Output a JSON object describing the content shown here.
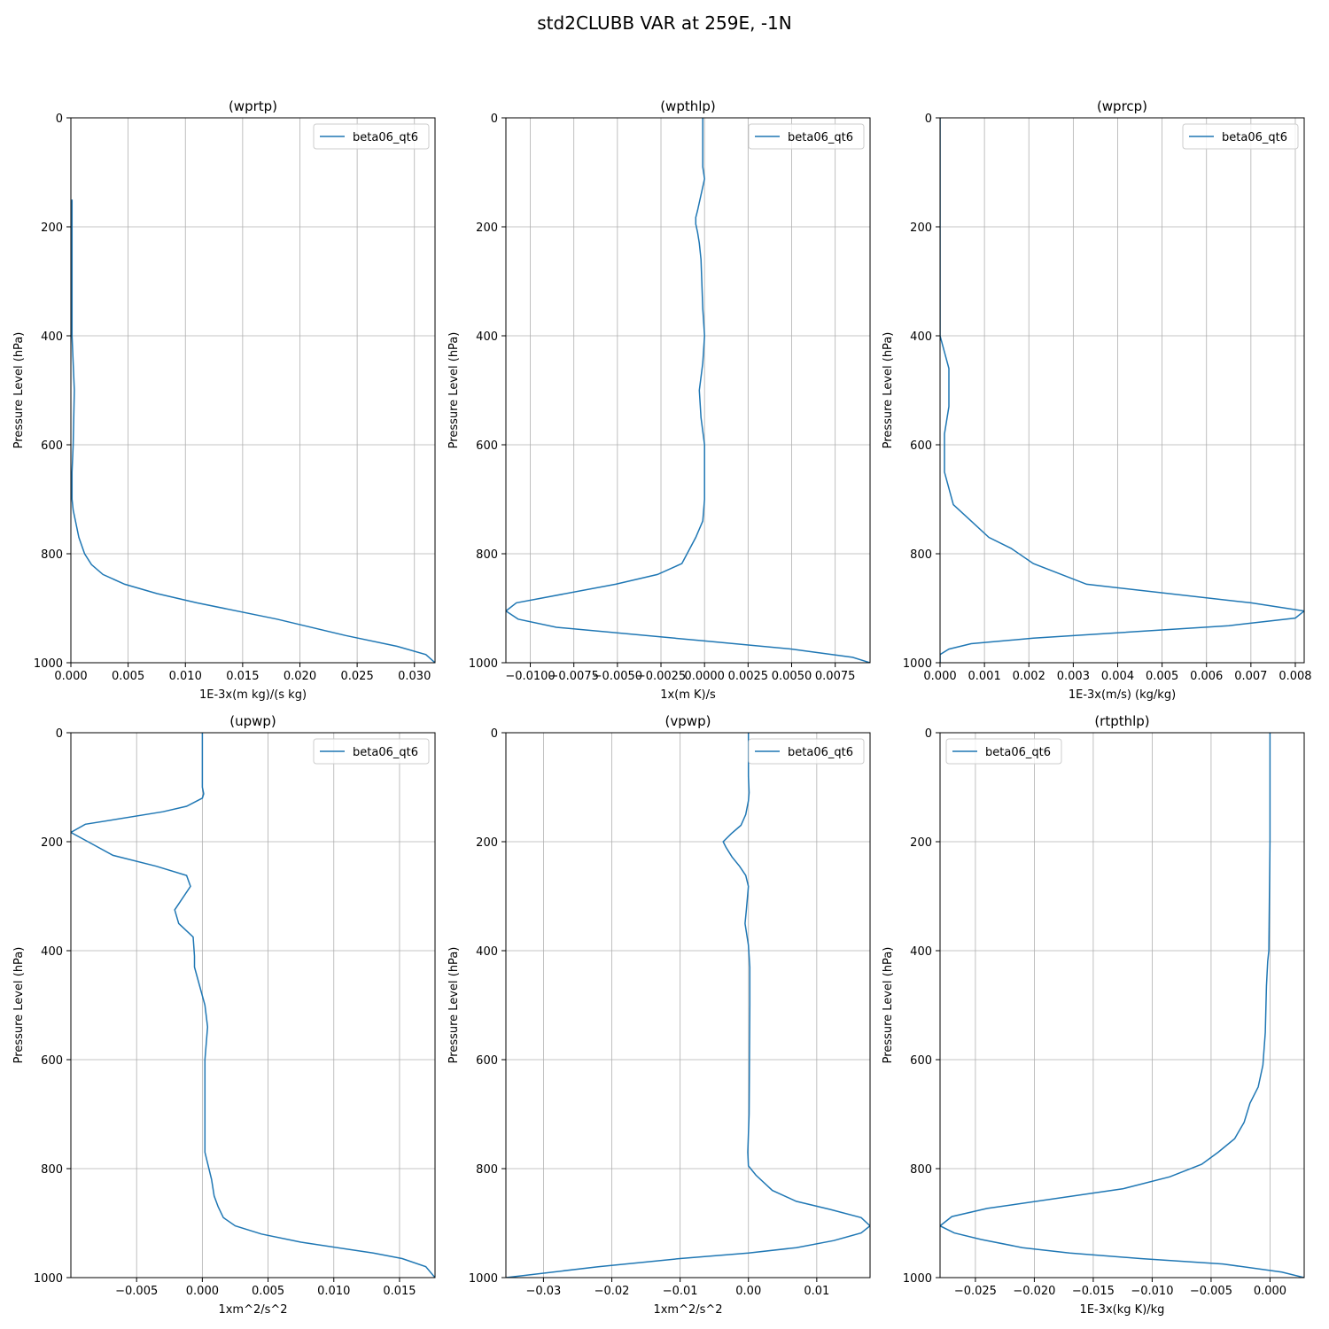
{
  "figure": {
    "suptitle": "std2CLUBB VAR at 259E, -1N"
  },
  "style": {
    "line_color": "#1f77b4",
    "grid_color": "#b0b0b0"
  },
  "chart_data": [
    {
      "type": "line",
      "title": "(wprtp)",
      "xlabel": "1E-3x(m kg)/(s kg)",
      "ylabel": "Pressure Level (hPa)",
      "xlim": [
        0,
        0.0318
      ],
      "ylim": [
        1000,
        0
      ],
      "grid": true,
      "legend": "top-right",
      "xticks": [
        0,
        0.005,
        0.01,
        0.015,
        0.02,
        0.025,
        0.03
      ],
      "xticklabels": [
        "0.000",
        "0.005",
        "0.010",
        "0.015",
        "0.020",
        "0.025",
        "0.030"
      ],
      "yticks": [
        0,
        200,
        400,
        600,
        800,
        1000
      ],
      "yticklabels": [
        "0",
        "200",
        "400",
        "600",
        "800",
        "1000"
      ],
      "series": [
        {
          "name": "beta06_qt6",
          "x": [
            0.0001,
            0.0001,
            0.0001,
            0.0001,
            0.0002,
            0.0003,
            0.0002,
            0.0001,
            0.0001,
            0.0002,
            0.0004,
            0.0007,
            0.0012,
            0.0018,
            0.0028,
            0.0047,
            0.0075,
            0.011,
            0.018,
            0.024,
            0.0285,
            0.031,
            0.0318
          ],
          "y": [
            150,
            200,
            260,
            400,
            450,
            500,
            600,
            650,
            700,
            720,
            740,
            770,
            800,
            820,
            838,
            856,
            873,
            890,
            920,
            950,
            970,
            985,
            1000
          ]
        }
      ]
    },
    {
      "type": "line",
      "title": "(wpthlp)",
      "xlabel": "1x(m K)/s",
      "ylabel": "Pressure Level (hPa)",
      "xlim": [
        -0.0114,
        0.0095
      ],
      "ylim": [
        1000,
        0
      ],
      "grid": true,
      "legend": "top-right",
      "xticks": [
        -0.01,
        -0.0075,
        -0.005,
        -0.0025,
        0,
        0.0025,
        0.005,
        0.0075
      ],
      "xticklabels": [
        "−0.0100",
        "−0.0075",
        "−0.0050",
        "−0.0025",
        "0.0000",
        "0.0025",
        "0.0050",
        "0.0075"
      ],
      "yticks": [
        0,
        200,
        400,
        600,
        800,
        1000
      ],
      "yticklabels": [
        "0",
        "200",
        "400",
        "600",
        "800",
        "1000"
      ],
      "series": [
        {
          "name": "beta06_qt6",
          "x": [
            -0.0001,
            -0.0001,
            -0.0001,
            0.0,
            -0.0004,
            -0.0005,
            -0.0005,
            -0.0004,
            -0.0003,
            -0.0002,
            -0.0001,
            0.0,
            -0.0001,
            -0.0003,
            -0.0002,
            0.0,
            0.0,
            -0.0001,
            -0.0005,
            -0.0013,
            -0.0027,
            -0.0051,
            -0.0108,
            -0.0114,
            -0.0107,
            -0.0085,
            0.0,
            0.005,
            0.0085,
            0.0095
          ],
          "y": [
            0,
            30,
            90,
            112,
            170,
            183,
            195,
            210,
            230,
            260,
            350,
            400,
            450,
            500,
            550,
            600,
            700,
            740,
            770,
            818,
            838,
            856,
            890,
            905,
            920,
            935,
            960,
            975,
            990,
            1000
          ]
        }
      ]
    },
    {
      "type": "line",
      "title": "(wprcp)",
      "xlabel": "1E-3x(m/s) (kg/kg)",
      "ylabel": "Pressure Level (hPa)",
      "xlim": [
        0,
        0.0082
      ],
      "ylim": [
        1000,
        0
      ],
      "grid": true,
      "legend": "top-right",
      "xticks": [
        0,
        0.001,
        0.002,
        0.003,
        0.004,
        0.005,
        0.006,
        0.007,
        0.008
      ],
      "xticklabels": [
        "0.000",
        "0.001",
        "0.002",
        "0.003",
        "0.004",
        "0.005",
        "0.006",
        "0.007",
        "0.008"
      ],
      "yticks": [
        0,
        200,
        400,
        600,
        800,
        1000
      ],
      "yticklabels": [
        "0",
        "200",
        "400",
        "600",
        "800",
        "1000"
      ],
      "series": [
        {
          "name": "beta06_qt6",
          "x": [
            0.0,
            0.0,
            0.0,
            0.0,
            0.0001,
            0.0002,
            0.0002,
            0.0002,
            0.0001,
            0.0001,
            0.0001,
            0.0001,
            0.0002,
            0.0003,
            0.0007,
            0.0011,
            0.0016,
            0.0021,
            0.0033,
            0.007,
            0.0082,
            0.008,
            0.0065,
            0.0021,
            0.0007,
            0.0002,
            0.0,
            0.0
          ],
          "y": [
            0,
            100,
            200,
            400,
            430,
            460,
            500,
            530,
            580,
            600,
            630,
            650,
            680,
            710,
            740,
            770,
            790,
            818,
            856,
            890,
            905,
            918,
            932,
            955,
            965,
            975,
            985,
            1000
          ]
        }
      ]
    },
    {
      "type": "line",
      "title": "(upwp)",
      "xlabel": "1xm^2/s^2",
      "ylabel": "Pressure Level (hPa)",
      "xlim": [
        -0.01,
        0.0177
      ],
      "ylim": [
        1000,
        0
      ],
      "grid": true,
      "legend": "top-right",
      "xticks": [
        -0.005,
        0,
        0.005,
        0.01,
        0.015
      ],
      "xticklabels": [
        "−0.005",
        "0.000",
        "0.005",
        "0.010",
        "0.015"
      ],
      "yticks": [
        0,
        200,
        400,
        600,
        800,
        1000
      ],
      "yticklabels": [
        "0",
        "200",
        "400",
        "600",
        "800",
        "1000"
      ],
      "series": [
        {
          "name": "beta06_qt6",
          "x": [
            0.0,
            0.0,
            0.0,
            0.0001,
            0.0,
            -0.0012,
            -0.003,
            -0.0089,
            -0.01,
            -0.0087,
            -0.0068,
            -0.0035,
            -0.0012,
            -0.0009,
            -0.0021,
            -0.0018,
            -0.0007,
            -0.0006,
            -0.0006,
            0.0002,
            0.0004,
            0.0003,
            0.0002,
            0.0002,
            0.0002,
            0.0007,
            0.0009,
            0.0012,
            0.0016,
            0.0025,
            0.0045,
            0.0075,
            0.013,
            0.0152,
            0.017,
            0.0177
          ],
          "y": [
            0,
            80,
            100,
            112,
            120,
            135,
            145,
            168,
            183,
            200,
            225,
            245,
            262,
            282,
            325,
            350,
            375,
            410,
            430,
            500,
            540,
            570,
            600,
            700,
            770,
            820,
            850,
            870,
            890,
            905,
            920,
            935,
            955,
            965,
            980,
            1000
          ]
        }
      ]
    },
    {
      "type": "line",
      "title": "(vpwp)",
      "xlabel": "1xm^2/s^2",
      "ylabel": "Pressure Level (hPa)",
      "xlim": [
        -0.0355,
        0.0178
      ],
      "ylim": [
        1000,
        0
      ],
      "grid": true,
      "legend": "top-right",
      "xticks": [
        -0.03,
        -0.02,
        -0.01,
        0,
        0.01
      ],
      "xticklabels": [
        "−0.03",
        "−0.02",
        "−0.01",
        "0.00",
        "0.01"
      ],
      "yticks": [
        0,
        200,
        400,
        600,
        800,
        1000
      ],
      "yticklabels": [
        "0",
        "200",
        "400",
        "600",
        "800",
        "1000"
      ],
      "series": [
        {
          "name": "beta06_qt6",
          "x": [
            0.0,
            0.0,
            0.0001,
            0.0,
            -0.0004,
            -0.0011,
            -0.0025,
            -0.0037,
            -0.0033,
            -0.0024,
            -0.0013,
            -0.0004,
            0.0,
            -0.0003,
            -0.0005,
            0.0,
            0.0002,
            0.0002,
            0.0001,
            -0.0001,
            0.0,
            0.0011,
            0.0035,
            0.007,
            0.012,
            0.0165,
            0.0178,
            0.0165,
            0.0125,
            0.007,
            0.0,
            -0.01,
            -0.022,
            -0.0355
          ],
          "y": [
            0,
            80,
            110,
            125,
            150,
            170,
            185,
            200,
            210,
            228,
            245,
            262,
            282,
            325,
            350,
            390,
            430,
            500,
            700,
            770,
            795,
            812,
            840,
            860,
            875,
            890,
            905,
            918,
            932,
            945,
            955,
            965,
            980,
            1000
          ]
        }
      ]
    },
    {
      "type": "line",
      "title": "(rtpthlp)",
      "xlabel": "1E-3x(kg K)/kg",
      "ylabel": "Pressure Level (hPa)",
      "xlim": [
        -0.028,
        0.0029
      ],
      "ylim": [
        1000,
        0
      ],
      "grid": true,
      "legend": "top-left",
      "xticks": [
        -0.025,
        -0.02,
        -0.015,
        -0.01,
        -0.005,
        0
      ],
      "xticklabels": [
        "−0.025",
        "−0.020",
        "−0.015",
        "−0.010",
        "−0.005",
        "0.000"
      ],
      "yticks": [
        0,
        200,
        400,
        600,
        800,
        1000
      ],
      "yticklabels": [
        "0",
        "200",
        "400",
        "600",
        "800",
        "1000"
      ],
      "series": [
        {
          "name": "beta06_qt6",
          "x": [
            0.0,
            0.0,
            -0.0001,
            -0.0002,
            -0.0003,
            -0.0004,
            -0.0006,
            -0.001,
            -0.0017,
            -0.0022,
            -0.003,
            -0.0044,
            -0.0058,
            -0.0085,
            -0.0125,
            -0.024,
            -0.027,
            -0.028,
            -0.0268,
            -0.0245,
            -0.021,
            -0.017,
            -0.011,
            -0.004,
            0.001,
            0.0029
          ],
          "y": [
            0,
            200,
            400,
            420,
            465,
            550,
            610,
            650,
            680,
            715,
            745,
            770,
            792,
            815,
            837,
            873,
            888,
            905,
            918,
            930,
            945,
            955,
            965,
            975,
            990,
            1000
          ]
        }
      ]
    }
  ]
}
